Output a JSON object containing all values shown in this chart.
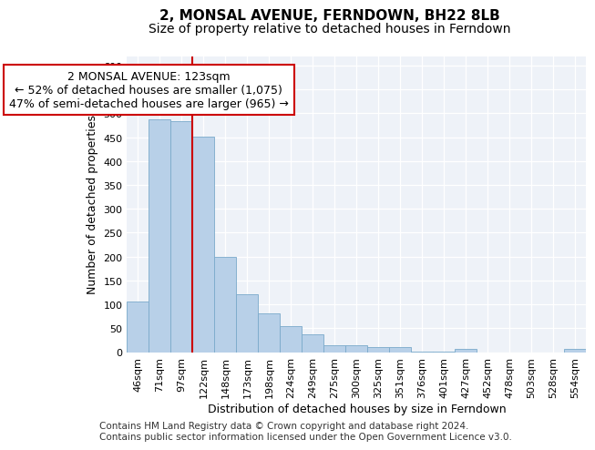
{
  "title": "2, MONSAL AVENUE, FERNDOWN, BH22 8LB",
  "subtitle": "Size of property relative to detached houses in Ferndown",
  "xlabel": "Distribution of detached houses by size in Ferndown",
  "ylabel": "Number of detached properties",
  "footer_line1": "Contains HM Land Registry data © Crown copyright and database right 2024.",
  "footer_line2": "Contains public sector information licensed under the Open Government Licence v3.0.",
  "categories": [
    "46sqm",
    "71sqm",
    "97sqm",
    "122sqm",
    "148sqm",
    "173sqm",
    "198sqm",
    "224sqm",
    "249sqm",
    "275sqm",
    "300sqm",
    "325sqm",
    "351sqm",
    "376sqm",
    "401sqm",
    "427sqm",
    "452sqm",
    "478sqm",
    "503sqm",
    "528sqm",
    "554sqm"
  ],
  "values": [
    105,
    487,
    483,
    452,
    200,
    122,
    82,
    55,
    38,
    15,
    15,
    10,
    10,
    1,
    1,
    6,
    0,
    0,
    0,
    0,
    7
  ],
  "bar_color": "#b8d0e8",
  "bar_edge_color": "#7aaacb",
  "annotation_line1": "2 MONSAL AVENUE: 123sqm",
  "annotation_line2": "← 52% of detached houses are smaller (1,075)",
  "annotation_line3": "47% of semi-detached houses are larger (965) →",
  "vline_color": "#cc0000",
  "annotation_box_edge": "#cc0000",
  "ylim": [
    0,
    620
  ],
  "yticks": [
    0,
    50,
    100,
    150,
    200,
    250,
    300,
    350,
    400,
    450,
    500,
    550,
    600
  ],
  "background_color": "#eef2f8",
  "grid_color": "#ffffff",
  "title_fontsize": 11,
  "subtitle_fontsize": 10,
  "axis_label_fontsize": 9,
  "tick_fontsize": 8,
  "annotation_fontsize": 9,
  "footer_fontsize": 7.5
}
